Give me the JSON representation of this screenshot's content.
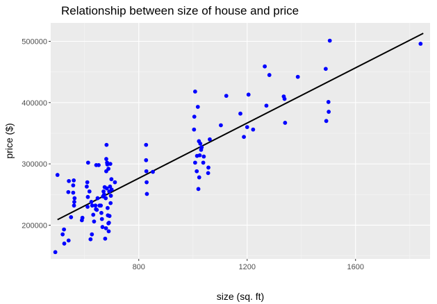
{
  "chart_data": {
    "type": "scatter",
    "title": "Relationship between size of house and price",
    "xlabel": "size (sq. ft)",
    "ylabel": "price ($)",
    "xlim": [
      475,
      1875
    ],
    "ylim": [
      145000,
      530000
    ],
    "x_ticks": [
      800,
      1200,
      1600
    ],
    "x_tick_labels": [
      "800",
      "1200",
      "1600"
    ],
    "y_ticks": [
      200000,
      300000,
      400000,
      500000
    ],
    "y_tick_labels": [
      "200000",
      "300000",
      "400000",
      "500000"
    ],
    "grid": true,
    "legend": "none",
    "point_color": "#0000ff",
    "line_color": "#000000",
    "panel_background": "#ebebeb",
    "fit_line": {
      "x": [
        500,
        1850
      ],
      "y": [
        209000,
        513000
      ]
    },
    "points": [
      [
        492,
        156000
      ],
      [
        500,
        282000
      ],
      [
        519,
        185000
      ],
      [
        524,
        193000
      ],
      [
        525,
        170000
      ],
      [
        541,
        175000
      ],
      [
        542,
        272000
      ],
      [
        540,
        254000
      ],
      [
        550,
        213000
      ],
      [
        558,
        253000
      ],
      [
        560,
        273000
      ],
      [
        558,
        265000
      ],
      [
        562,
        238000
      ],
      [
        561,
        232000
      ],
      [
        563,
        244000
      ],
      [
        590,
        208000
      ],
      [
        592,
        212000
      ],
      [
        610,
        270000
      ],
      [
        613,
        302000
      ],
      [
        608,
        263000
      ],
      [
        612,
        246000
      ],
      [
        611,
        230000
      ],
      [
        618,
        255000
      ],
      [
        622,
        177000
      ],
      [
        625,
        238000
      ],
      [
        627,
        185000
      ],
      [
        628,
        232000
      ],
      [
        632,
        217000
      ],
      [
        635,
        206000
      ],
      [
        640,
        232000
      ],
      [
        643,
        298000
      ],
      [
        642,
        226000
      ],
      [
        645,
        225000
      ],
      [
        648,
        244000
      ],
      [
        652,
        298000
      ],
      [
        655,
        232000
      ],
      [
        660,
        232000
      ],
      [
        662,
        220000
      ],
      [
        664,
        210000
      ],
      [
        666,
        197000
      ],
      [
        668,
        247000
      ],
      [
        670,
        255000
      ],
      [
        672,
        250000
      ],
      [
        674,
        262000
      ],
      [
        676,
        178000
      ],
      [
        678,
        244000
      ],
      [
        679,
        195000
      ],
      [
        680,
        308000
      ],
      [
        680,
        288000
      ],
      [
        681,
        331000
      ],
      [
        682,
        260000
      ],
      [
        683,
        302000
      ],
      [
        684,
        299000
      ],
      [
        685,
        228000
      ],
      [
        686,
        216000
      ],
      [
        688,
        203000
      ],
      [
        688,
        292000
      ],
      [
        689,
        190000
      ],
      [
        690,
        204000
      ],
      [
        691,
        255000
      ],
      [
        692,
        215000
      ],
      [
        694,
        263000
      ],
      [
        695,
        300000
      ],
      [
        696,
        236000
      ],
      [
        697,
        248000
      ],
      [
        699,
        275000
      ],
      [
        700,
        258000
      ],
      [
        712,
        270000
      ],
      [
        827,
        331000
      ],
      [
        827,
        306000
      ],
      [
        828,
        288000
      ],
      [
        829,
        270000
      ],
      [
        830,
        251000
      ],
      [
        852,
        287000
      ],
      [
        1004,
        356000
      ],
      [
        1005,
        377000
      ],
      [
        1008,
        302000
      ],
      [
        1008,
        418000
      ],
      [
        1014,
        288000
      ],
      [
        1015,
        313000
      ],
      [
        1018,
        393000
      ],
      [
        1020,
        259000
      ],
      [
        1022,
        337000
      ],
      [
        1023,
        278000
      ],
      [
        1025,
        314000
      ],
      [
        1027,
        333000
      ],
      [
        1030,
        323000
      ],
      [
        1032,
        327000
      ],
      [
        1038,
        302000
      ],
      [
        1040,
        312000
      ],
      [
        1056,
        285000
      ],
      [
        1057,
        294000
      ],
      [
        1062,
        340000
      ],
      [
        1103,
        363000
      ],
      [
        1123,
        411000
      ],
      [
        1175,
        382000
      ],
      [
        1188,
        344000
      ],
      [
        1200,
        360000
      ],
      [
        1205,
        413000
      ],
      [
        1222,
        356000
      ],
      [
        1265,
        459000
      ],
      [
        1271,
        395000
      ],
      [
        1282,
        445000
      ],
      [
        1335,
        410000
      ],
      [
        1338,
        406000
      ],
      [
        1340,
        367000
      ],
      [
        1387,
        442000
      ],
      [
        1490,
        455000
      ],
      [
        1492,
        370000
      ],
      [
        1500,
        401000
      ],
      [
        1501,
        385000
      ],
      [
        1505,
        501000
      ],
      [
        1840,
        496000
      ]
    ]
  }
}
